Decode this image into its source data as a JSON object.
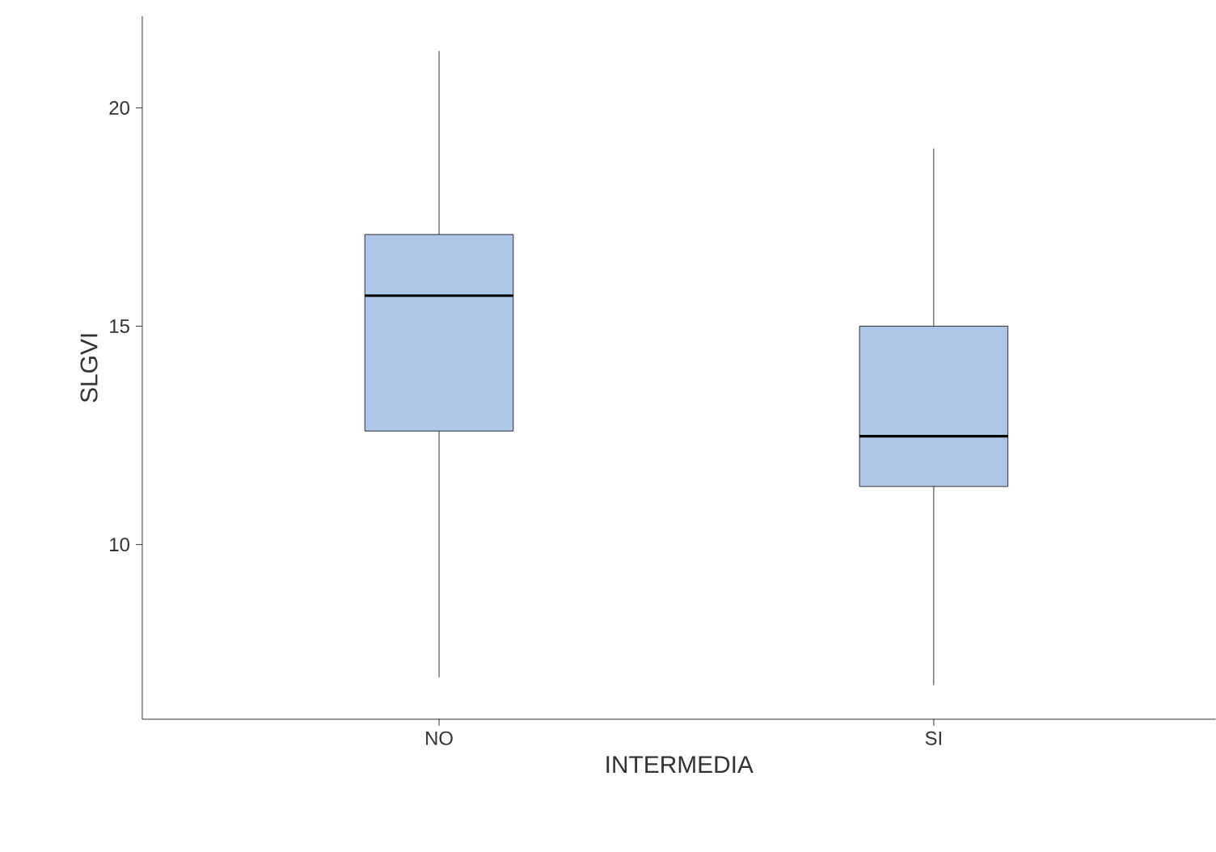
{
  "chart_data": {
    "type": "box",
    "xlabel": "INTERMEDIA",
    "ylabel": "SLGVI",
    "categories": [
      "NO",
      "SI"
    ],
    "color": "#aec7e8",
    "ylim": [
      6.0,
      22.1
    ],
    "yticks": [
      10,
      15,
      20
    ],
    "boxes": [
      {
        "low": 6.96,
        "q1": 12.6,
        "median": 15.7,
        "q3": 17.1,
        "high": 21.3
      },
      {
        "low": 6.78,
        "q1": 11.33,
        "median": 12.48,
        "q3": 15.0,
        "high": 19.07
      }
    ]
  }
}
